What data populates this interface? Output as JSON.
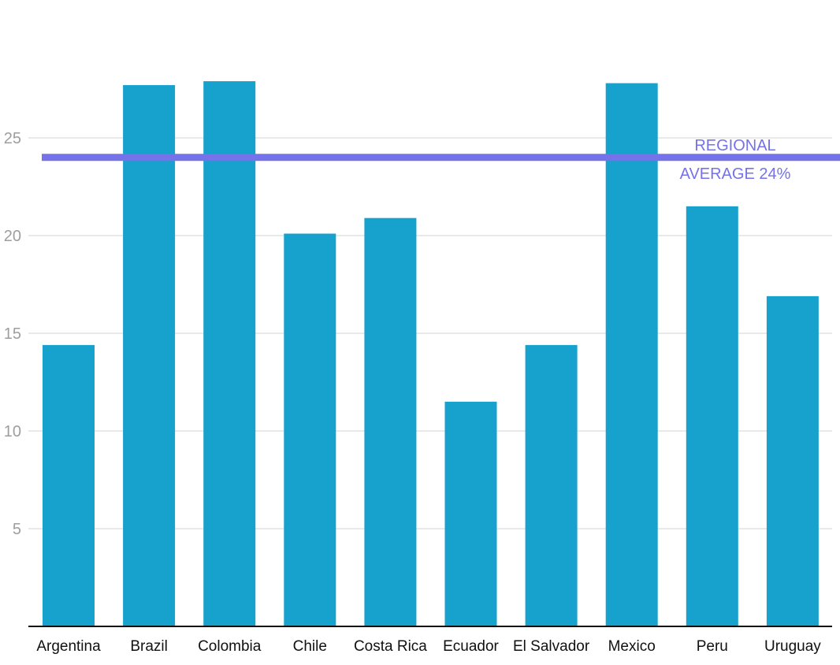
{
  "chart_data": {
    "type": "bar",
    "categories": [
      "Argentina",
      "Brazil",
      "Colombia",
      "Chile",
      "Costa Rica",
      "Ecuador",
      "El Salvador",
      "Mexico",
      "Peru",
      "Uruguay"
    ],
    "values": [
      14.4,
      27.7,
      27.9,
      20.1,
      20.9,
      11.5,
      14.4,
      27.8,
      21.5,
      16.9
    ],
    "ylim": [
      0,
      30
    ],
    "yticks": [
      5,
      10,
      15,
      20,
      25
    ],
    "grid": true,
    "reference_line": {
      "value": 24,
      "label_line1": "REGIONAL",
      "label_line2": "AVERAGE 24%",
      "color": "#7572ea"
    },
    "bar_color": "#17a2ce"
  }
}
